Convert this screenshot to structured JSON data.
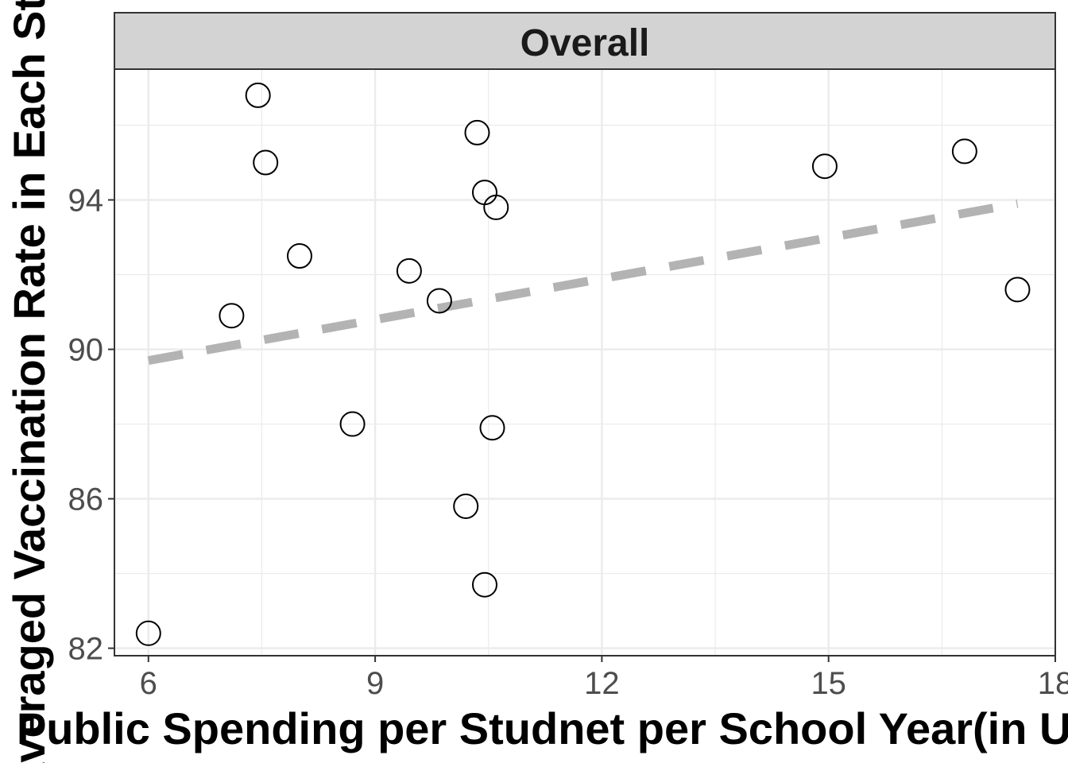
{
  "chart_data": {
    "type": "scatter",
    "facet_label": "Overall",
    "xlabel": "Public Spending per Studnet per School Year(in US $)",
    "ylabel": "Averaged Vaccination Rate in Each State",
    "xlim": [
      5.55,
      18.0
    ],
    "ylim": [
      81.8,
      97.5
    ],
    "xticks": [
      6,
      9,
      12,
      15,
      18
    ],
    "yticks": [
      82,
      86,
      90,
      94
    ],
    "grid": true,
    "series": [
      {
        "points": [
          {
            "x": 6.0,
            "y": 82.4
          },
          {
            "x": 7.1,
            "y": 90.9
          },
          {
            "x": 7.45,
            "y": 96.8
          },
          {
            "x": 7.55,
            "y": 95.0
          },
          {
            "x": 8.0,
            "y": 92.5
          },
          {
            "x": 8.7,
            "y": 88.0
          },
          {
            "x": 9.45,
            "y": 92.1
          },
          {
            "x": 9.85,
            "y": 91.3
          },
          {
            "x": 10.2,
            "y": 85.8
          },
          {
            "x": 10.35,
            "y": 95.8
          },
          {
            "x": 10.45,
            "y": 94.2
          },
          {
            "x": 10.45,
            "y": 83.7
          },
          {
            "x": 10.55,
            "y": 87.9
          },
          {
            "x": 10.6,
            "y": 93.8
          },
          {
            "x": 14.95,
            "y": 94.9
          },
          {
            "x": 16.8,
            "y": 95.3
          },
          {
            "x": 17.5,
            "y": 91.6
          }
        ]
      }
    ],
    "trend_line": {
      "style": "dashed",
      "color": "#b3b3b3",
      "x": [
        6.0,
        17.5
      ],
      "y": [
        89.7,
        93.9
      ]
    },
    "colors": {
      "panel_border": "#333333",
      "strip_fill": "#d9d9d9",
      "grid": "#ebebeb",
      "points": "#000000"
    }
  }
}
